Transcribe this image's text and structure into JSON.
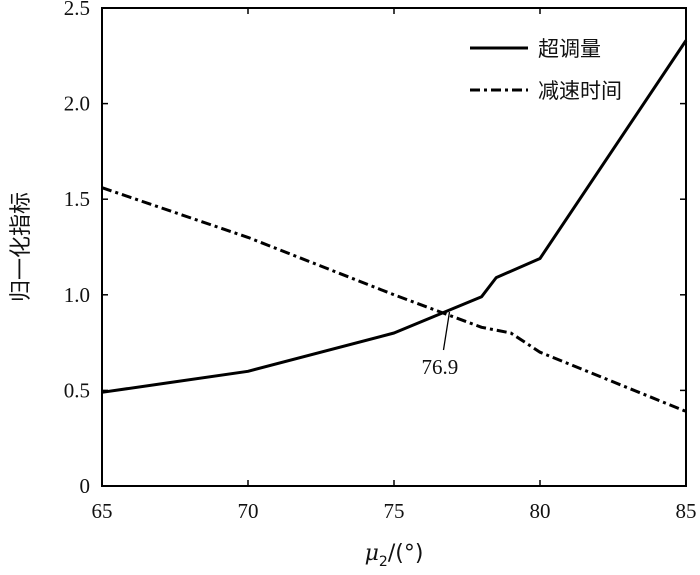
{
  "chart_data": {
    "type": "line",
    "title": "",
    "xlabel_symbol": "μ",
    "xlabel_subscript": "2",
    "xlabel_unit": "/(°)",
    "ylabel": "归一化指标",
    "xlim": [
      65,
      85
    ],
    "ylim": [
      0,
      2.5
    ],
    "x_ticks": [
      "65",
      "70",
      "75",
      "80",
      "85"
    ],
    "y_ticks": [
      "0",
      "0.5",
      "1.0",
      "1.5",
      "2.0",
      "2.5"
    ],
    "grid": false,
    "legend_position": "top-right",
    "series": [
      {
        "name": "超调量",
        "style": "solid",
        "color": "#000000",
        "x": [
          65,
          70,
          75,
          78,
          78.5,
          80,
          85
        ],
        "y": [
          0.49,
          0.6,
          0.8,
          0.99,
          1.09,
          1.19,
          2.33
        ]
      },
      {
        "name": "减速时间",
        "style": "dashdot",
        "color": "#000000",
        "x": [
          65,
          70,
          75,
          78,
          79,
          80,
          85
        ],
        "y": [
          1.56,
          1.3,
          1.0,
          0.83,
          0.8,
          0.7,
          0.39
        ]
      }
    ],
    "annotations": [
      {
        "text": "76.9",
        "x": 76.9,
        "y": 0.91
      }
    ]
  }
}
